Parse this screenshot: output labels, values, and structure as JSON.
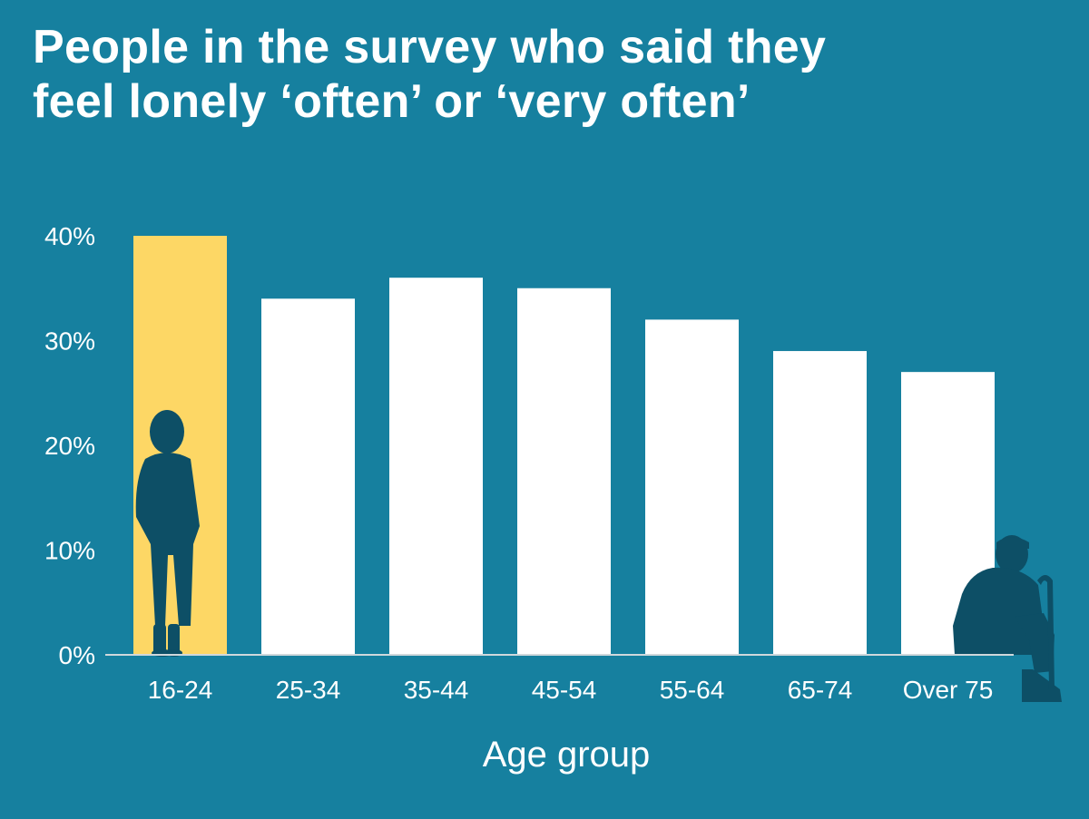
{
  "title_lines": [
    "People in the survey who said they",
    "feel lonely ‘often’ or ‘very often’"
  ],
  "colors": {
    "background": "#16809f",
    "highlight_bar": "#fdd765",
    "bar": "#ffffff",
    "axis": "#cfd8dc",
    "silhouette": "#0d4f66"
  },
  "chart_data": {
    "type": "bar",
    "title": "People in the survey who said they feel lonely ‘often’ or ‘very often’",
    "xlabel": "Age group",
    "ylabel": "",
    "categories": [
      "16-24",
      "25-34",
      "35-44",
      "45-54",
      "55-64",
      "65-74",
      "Over 75"
    ],
    "values": [
      40,
      34,
      36,
      35,
      32,
      29,
      27
    ],
    "highlight_index": 0,
    "ylim": [
      0,
      40
    ],
    "yticks": [
      0,
      10,
      20,
      30,
      40
    ],
    "ytick_labels": [
      "0%",
      "10%",
      "20%",
      "30%",
      "40%"
    ],
    "grid": false,
    "legend": "none",
    "icons": [
      "young-person-silhouette-icon",
      "elderly-person-with-cane-silhouette-icon"
    ]
  }
}
